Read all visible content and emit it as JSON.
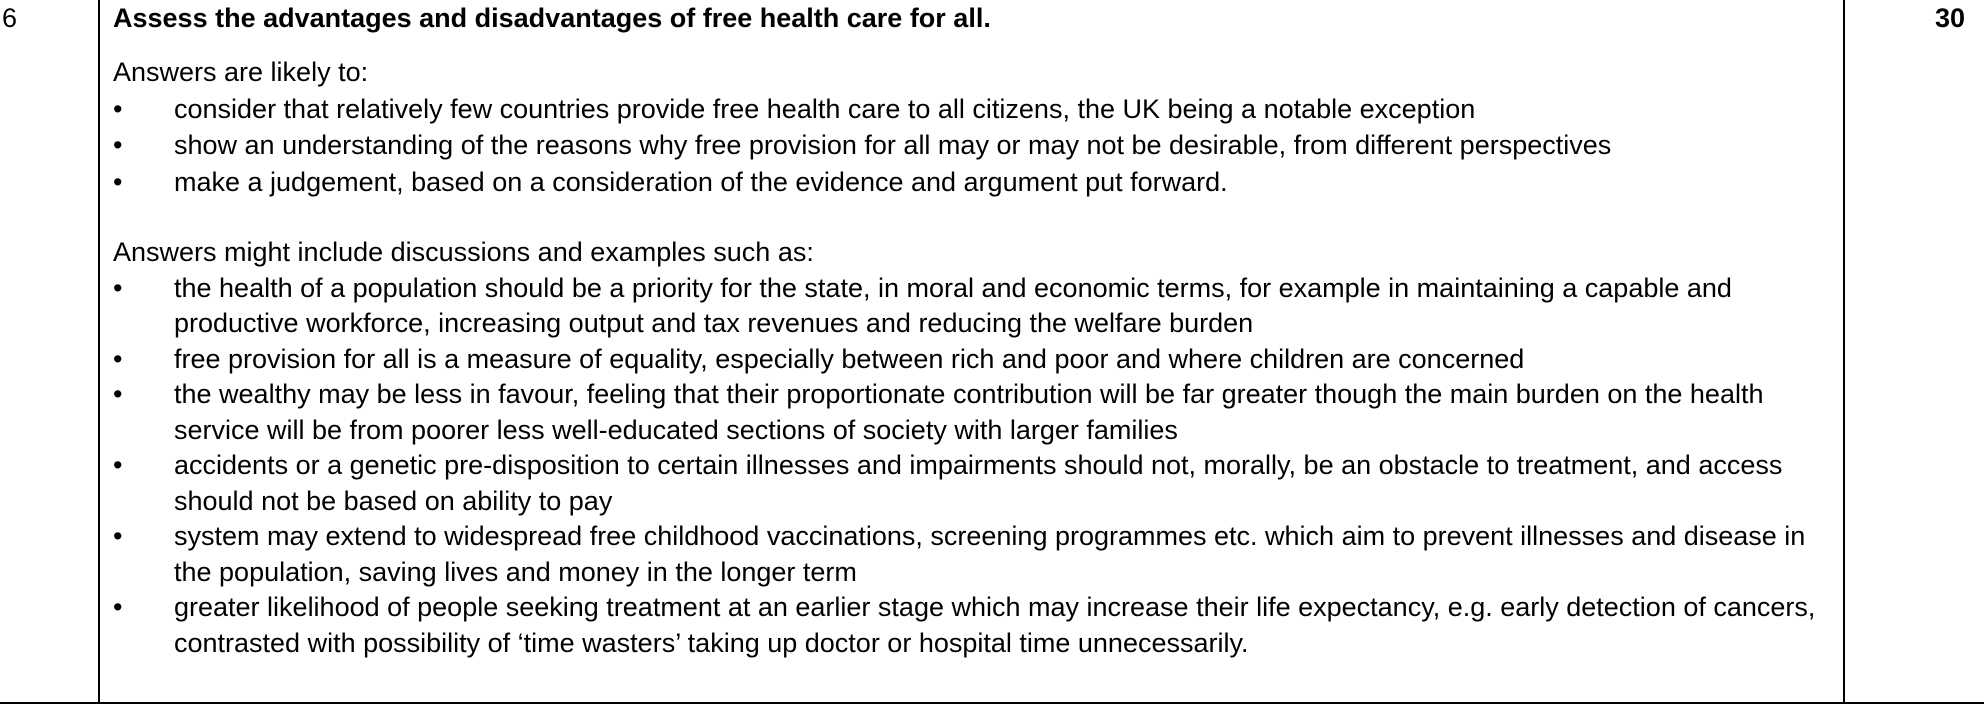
{
  "question": {
    "number": "6",
    "marks": "30",
    "title": "Assess the advantages and disadvantages of free health care for all."
  },
  "likely": {
    "intro": "Answers are likely to:",
    "bullets": [
      "consider that relatively few countries provide free health care to all citizens, the UK being a notable exception",
      "show an understanding of the reasons why free provision for all may or may not be desirable, from different perspectives",
      "make a judgement, based on a consideration of the evidence and argument put forward."
    ]
  },
  "might": {
    "intro": "Answers might include discussions and examples such as:",
    "bullets": [
      "the health of a population should be a priority for the state, in moral and economic terms, for example in maintaining a capable and productive workforce, increasing output and tax revenues and reducing the welfare burden",
      "free provision for all is a measure of equality, especially between rich and poor and where children are concerned",
      "the wealthy may be less in favour, feeling that their proportionate contribution will be far greater though the main burden on the health service will be from poorer less well-educated sections of society with larger families",
      "accidents or a genetic pre-disposition to certain illnesses and impairments should not, morally, be an obstacle to treatment, and access should not be based on ability to pay",
      "system may extend to widespread free childhood vaccinations, screening programmes etc. which aim to prevent illnesses and disease in the population, saving lives and money in the longer term",
      "greater likelihood of people seeking treatment at an earlier stage which may increase their life expectancy, e.g. early detection of cancers, contrasted with possibility of ‘time wasters’ taking up doctor or hospital time unnecessarily."
    ]
  },
  "bullet_glyph": "•"
}
